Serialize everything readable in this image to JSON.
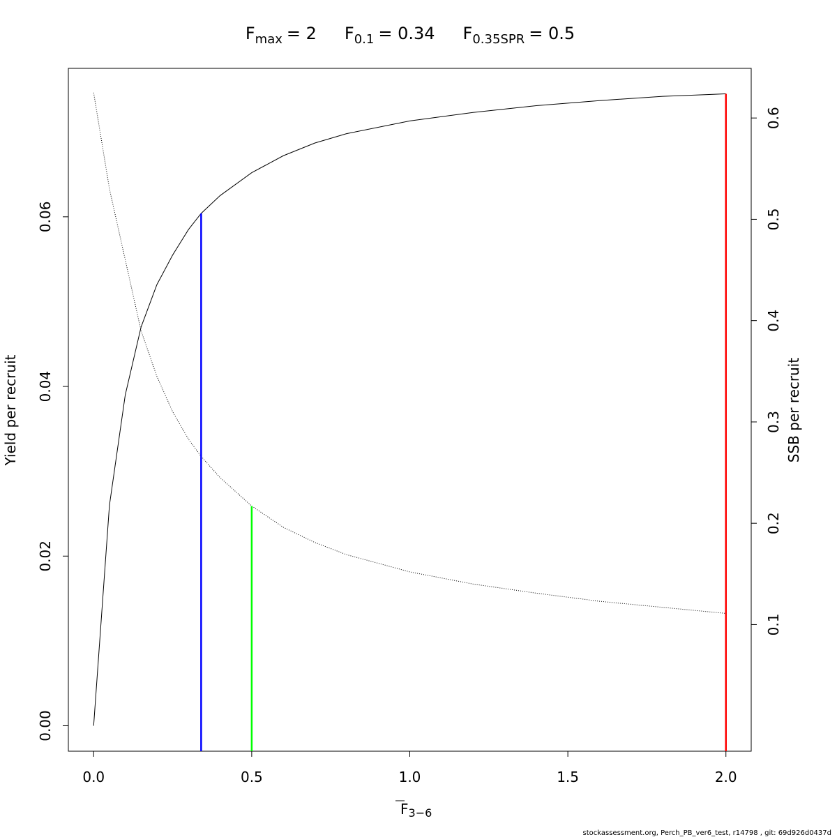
{
  "chart_data": {
    "type": "line",
    "title": [
      {
        "text": "F",
        "sub": "max",
        "rest": "= 2"
      },
      {
        "text": "F",
        "sub": "0.1",
        "rest": "= 0.34"
      },
      {
        "text": "F",
        "sub": "0.35SPR",
        "rest": "= 0.5"
      }
    ],
    "xlabel": {
      "text": "F",
      "sub": "3−6"
    },
    "ylabel": "Yield per recruit",
    "y2label": "SSB per recruit",
    "footer": "stockassessment.org, Perch_PB_ver6_test, r14798 , git: 69d926d0437d",
    "x": [
      0,
      0.05,
      0.1,
      0.15,
      0.2,
      0.25,
      0.3,
      0.34,
      0.4,
      0.5,
      0.6,
      0.7,
      0.8,
      1.0,
      1.2,
      1.4,
      1.6,
      1.8,
      2.0
    ],
    "series": [
      {
        "name": "Yield per recruit",
        "color": "#000000",
        "style": "solid",
        "axis": "y",
        "values": [
          0,
          0.026,
          0.039,
          0.047,
          0.052,
          0.0555,
          0.0585,
          0.0604,
          0.0625,
          0.0652,
          0.0672,
          0.0687,
          0.0698,
          0.0713,
          0.0723,
          0.0731,
          0.0737,
          0.0742,
          0.0745
        ]
      },
      {
        "name": "SSB per recruit",
        "color": "#000000",
        "style": "dotted",
        "axis": "y2",
        "values": [
          0.625,
          0.53,
          0.46,
          0.39,
          0.345,
          0.31,
          0.283,
          0.266,
          0.245,
          0.217,
          0.196,
          0.181,
          0.169,
          0.152,
          0.14,
          0.131,
          0.123,
          0.117,
          0.111
        ]
      }
    ],
    "reference_lines": [
      {
        "x": 0.34,
        "top": 0.0604,
        "axis": "y",
        "color": "#0000ff"
      },
      {
        "x": 0.5,
        "top": 0.217,
        "axis": "y2",
        "color": "#00ff00"
      },
      {
        "x": 2,
        "top": 0.0745,
        "axis": "y",
        "color": "#ff0000"
      }
    ],
    "xlim": [
      -0.08,
      2.08
    ],
    "xticks": [
      {
        "value": 0,
        "label": "0.0"
      },
      0.5,
      {
        "value": 1,
        "label": "1.0"
      },
      1.5,
      {
        "value": 2,
        "label": "2.0"
      }
    ],
    "ylim": [
      -0.003,
      0.0775
    ],
    "yticks": [
      {
        "value": 0,
        "label": "0.00"
      },
      0.02,
      0.04,
      0.06
    ],
    "y2lim": [
      -0.025,
      0.649
    ],
    "y2ticks": [
      0.1,
      0.2,
      0.3,
      0.4,
      0.5,
      0.6
    ]
  }
}
